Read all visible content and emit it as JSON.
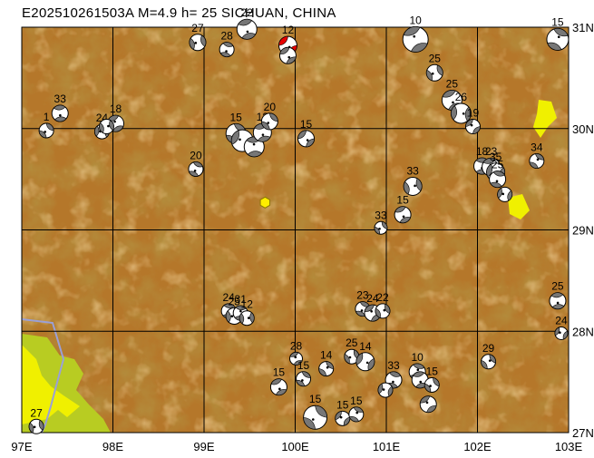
{
  "title": "E202510261503A  M=4.9  h= 25  SICHUAN, CHINA",
  "colors": {
    "terrain_base": "#b5772a",
    "terrain_light": "#cf9346",
    "terrain_dark": "#7f4d12",
    "lowland_yellow": "#f0f000",
    "lowland_green": "#b8cc22",
    "grid": "#000000",
    "boundary": "#9aa0d8",
    "epicenter": "#ffee00",
    "beachball_dark": "#777777",
    "highlight_event": "#e60000"
  },
  "axes": {
    "lon_labels": [
      "97E",
      "98E",
      "99E",
      "100E",
      "101E",
      "102E",
      "103E"
    ],
    "lat_labels": [
      "31N",
      "30N",
      "29N",
      "28N",
      "27N"
    ],
    "lon_range": [
      97,
      103
    ],
    "lat_range": [
      27,
      31
    ]
  },
  "epicenter": {
    "lon": 99.67,
    "lat": 29.27
  },
  "events": [
    {
      "lon": 99.47,
      "lat": 30.98,
      "depth": "22",
      "size": 11,
      "ang": 30
    },
    {
      "lon": 98.93,
      "lat": 30.85,
      "depth": "27",
      "size": 9,
      "ang": 120
    },
    {
      "lon": 99.25,
      "lat": 30.78,
      "depth": "28",
      "size": 8,
      "ang": 60
    },
    {
      "lon": 99.92,
      "lat": 30.82,
      "depth": "12",
      "size": 10,
      "ang": 0,
      "highlight": true
    },
    {
      "lon": 99.92,
      "lat": 30.72,
      "depth": "",
      "size": 9,
      "ang": 10
    },
    {
      "lon": 101.32,
      "lat": 30.88,
      "depth": "10",
      "size": 14,
      "ang": 200
    },
    {
      "lon": 102.88,
      "lat": 30.88,
      "depth": "15",
      "size": 12,
      "ang": 250
    },
    {
      "lon": 97.42,
      "lat": 30.15,
      "depth": "33",
      "size": 9,
      "ang": 40
    },
    {
      "lon": 97.27,
      "lat": 29.98,
      "depth": "1",
      "size": 8,
      "ang": 90
    },
    {
      "lon": 97.88,
      "lat": 29.97,
      "depth": "24",
      "size": 8,
      "ang": 140
    },
    {
      "lon": 98.03,
      "lat": 30.05,
      "depth": "18",
      "size": 9,
      "ang": 200
    },
    {
      "lon": 97.93,
      "lat": 30.02,
      "depth": "",
      "size": 8,
      "ang": 300
    },
    {
      "lon": 99.35,
      "lat": 29.95,
      "depth": "15",
      "size": 11,
      "ang": 80
    },
    {
      "lon": 99.42,
      "lat": 29.88,
      "depth": "",
      "size": 12,
      "ang": 160
    },
    {
      "lon": 99.55,
      "lat": 29.82,
      "depth": "",
      "size": 11,
      "ang": 220
    },
    {
      "lon": 99.64,
      "lat": 29.96,
      "depth": "12",
      "size": 10,
      "ang": 30
    },
    {
      "lon": 99.72,
      "lat": 30.07,
      "depth": "20",
      "size": 9,
      "ang": 90
    },
    {
      "lon": 100.12,
      "lat": 29.9,
      "depth": "15",
      "size": 9,
      "ang": 0
    },
    {
      "lon": 98.91,
      "lat": 29.6,
      "depth": "20",
      "size": 8,
      "ang": 70
    },
    {
      "lon": 101.53,
      "lat": 30.55,
      "depth": "25",
      "size": 9,
      "ang": 110
    },
    {
      "lon": 101.72,
      "lat": 30.28,
      "depth": "25",
      "size": 11,
      "ang": 20
    },
    {
      "lon": 101.82,
      "lat": 30.15,
      "depth": "26",
      "size": 11,
      "ang": 320
    },
    {
      "lon": 101.95,
      "lat": 30.02,
      "depth": "19",
      "size": 8,
      "ang": 180
    },
    {
      "lon": 102.05,
      "lat": 29.63,
      "depth": "18",
      "size": 9,
      "ang": 45
    },
    {
      "lon": 102.15,
      "lat": 29.62,
      "depth": "23",
      "size": 10,
      "ang": 210
    },
    {
      "lon": 102.2,
      "lat": 29.57,
      "depth": "35",
      "size": 10,
      "ang": 330
    },
    {
      "lon": 102.22,
      "lat": 29.5,
      "depth": "25",
      "size": 9,
      "ang": 60
    },
    {
      "lon": 102.3,
      "lat": 29.35,
      "depth": "",
      "size": 8,
      "ang": 150
    },
    {
      "lon": 102.65,
      "lat": 29.68,
      "depth": "34",
      "size": 8,
      "ang": 260
    },
    {
      "lon": 101.29,
      "lat": 29.43,
      "depth": "33",
      "size": 10,
      "ang": 300
    },
    {
      "lon": 101.18,
      "lat": 29.15,
      "depth": "15",
      "size": 9,
      "ang": 20
    },
    {
      "lon": 100.94,
      "lat": 29.02,
      "depth": "33",
      "size": 7,
      "ang": 100
    },
    {
      "lon": 99.27,
      "lat": 28.2,
      "depth": "24",
      "size": 8,
      "ang": 50
    },
    {
      "lon": 99.33,
      "lat": 28.15,
      "depth": "25",
      "size": 9,
      "ang": 130
    },
    {
      "lon": 99.4,
      "lat": 28.18,
      "depth": "31",
      "size": 8,
      "ang": 230
    },
    {
      "lon": 99.47,
      "lat": 28.13,
      "depth": "12",
      "size": 8,
      "ang": 310
    },
    {
      "lon": 100.74,
      "lat": 28.22,
      "depth": "23",
      "size": 8,
      "ang": 70
    },
    {
      "lon": 100.85,
      "lat": 28.18,
      "depth": "24",
      "size": 9,
      "ang": 190
    },
    {
      "lon": 100.96,
      "lat": 28.2,
      "depth": "22",
      "size": 8,
      "ang": 290
    },
    {
      "lon": 102.88,
      "lat": 28.3,
      "depth": "25",
      "size": 9,
      "ang": 40
    },
    {
      "lon": 102.92,
      "lat": 27.98,
      "depth": "24",
      "size": 7,
      "ang": 160
    },
    {
      "lon": 100.01,
      "lat": 27.73,
      "depth": "28",
      "size": 7,
      "ang": 200
    },
    {
      "lon": 100.09,
      "lat": 27.53,
      "depth": "15",
      "size": 8,
      "ang": 80
    },
    {
      "lon": 100.34,
      "lat": 27.63,
      "depth": "14",
      "size": 8,
      "ang": 270
    },
    {
      "lon": 99.82,
      "lat": 27.45,
      "depth": "15",
      "size": 9,
      "ang": 20
    },
    {
      "lon": 100.62,
      "lat": 27.75,
      "depth": "25",
      "size": 8,
      "ang": 110
    },
    {
      "lon": 100.77,
      "lat": 27.7,
      "depth": "14",
      "size": 10,
      "ang": 340
    },
    {
      "lon": 101.08,
      "lat": 27.52,
      "depth": "33",
      "size": 9,
      "ang": 60
    },
    {
      "lon": 100.99,
      "lat": 27.42,
      "depth": "",
      "size": 8,
      "ang": 150
    },
    {
      "lon": 101.34,
      "lat": 27.6,
      "depth": "10",
      "size": 9,
      "ang": 240
    },
    {
      "lon": 101.37,
      "lat": 27.52,
      "depth": "",
      "size": 9,
      "ang": 30
    },
    {
      "lon": 101.5,
      "lat": 27.47,
      "depth": "15",
      "size": 8,
      "ang": 100
    },
    {
      "lon": 101.46,
      "lat": 27.28,
      "depth": "",
      "size": 9,
      "ang": 190
    },
    {
      "lon": 102.12,
      "lat": 27.7,
      "depth": "29",
      "size": 8,
      "ang": 280
    },
    {
      "lon": 100.22,
      "lat": 27.15,
      "depth": "15",
      "size": 13,
      "ang": 90
    },
    {
      "lon": 100.52,
      "lat": 27.14,
      "depth": "15",
      "size": 8,
      "ang": 170
    },
    {
      "lon": 100.67,
      "lat": 27.18,
      "depth": "15",
      "size": 8,
      "ang": 250
    },
    {
      "lon": 97.16,
      "lat": 27.06,
      "depth": "27",
      "size": 8,
      "ang": 120
    }
  ]
}
